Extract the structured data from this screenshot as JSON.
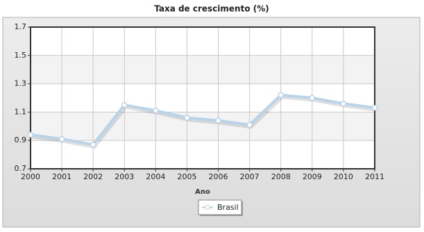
{
  "chart_data": {
    "type": "line",
    "title": "Taxa de crescimento (%)",
    "x_label": "Ano",
    "categories": [
      "2000",
      "2001",
      "2002",
      "2003",
      "2004",
      "2005",
      "2006",
      "2007",
      "2008",
      "2009",
      "2010",
      "2011"
    ],
    "series": [
      {
        "name": "Brasil",
        "color": "#b8d4ea",
        "values": [
          0.94,
          0.91,
          0.87,
          1.15,
          1.11,
          1.06,
          1.04,
          1.01,
          1.22,
          1.2,
          1.16,
          1.13
        ]
      }
    ],
    "ylim": [
      0.7,
      1.7
    ],
    "yticks": [
      0.7,
      0.9,
      1.1,
      1.3,
      1.5,
      1.7
    ],
    "grid": true,
    "legend": "bottom"
  }
}
